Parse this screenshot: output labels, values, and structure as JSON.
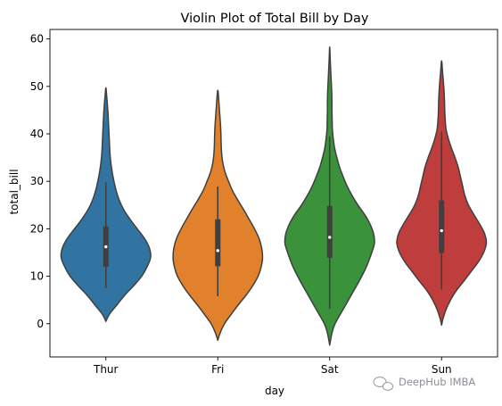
{
  "chart_data": {
    "type": "violin",
    "title": "Violin Plot of Total Bill by Day",
    "xlabel": "day",
    "ylabel": "total_bill",
    "ylim": [
      -7,
      62
    ],
    "yticks": [
      0,
      10,
      20,
      30,
      40,
      50,
      60
    ],
    "grid": false,
    "legend": "none",
    "categories": [
      "Thur",
      "Fri",
      "Sat",
      "Sun"
    ],
    "series": [
      {
        "category": "Thur",
        "color": "#3274a1",
        "kde_range": [
          0.5,
          49.7
        ],
        "density_profile": [
          [
            0.5,
            0.0
          ],
          [
            2,
            0.08
          ],
          [
            4,
            0.25
          ],
          [
            6,
            0.42
          ],
          [
            8,
            0.62
          ],
          [
            10,
            0.8
          ],
          [
            12,
            0.92
          ],
          [
            14,
            1.0
          ],
          [
            16,
            0.97
          ],
          [
            18,
            0.86
          ],
          [
            20,
            0.7
          ],
          [
            22,
            0.54
          ],
          [
            24,
            0.4
          ],
          [
            26,
            0.3
          ],
          [
            28,
            0.23
          ],
          [
            30,
            0.18
          ],
          [
            32,
            0.14
          ],
          [
            34,
            0.11
          ],
          [
            36,
            0.09
          ],
          [
            38,
            0.08
          ],
          [
            40,
            0.07
          ],
          [
            42,
            0.06
          ],
          [
            44,
            0.05
          ],
          [
            46,
            0.035
          ],
          [
            48,
            0.018
          ],
          [
            49.7,
            0.0
          ]
        ],
        "median": 16.2,
        "q1": 12.0,
        "q3": 20.5,
        "whisker_low": 7.5,
        "whisker_high": 29.8
      },
      {
        "category": "Fri",
        "color": "#e1812c",
        "kde_range": [
          -3.5,
          49.2
        ],
        "density_profile": [
          [
            -3.5,
            0.0
          ],
          [
            -2,
            0.05
          ],
          [
            0,
            0.15
          ],
          [
            2,
            0.3
          ],
          [
            4,
            0.46
          ],
          [
            6,
            0.63
          ],
          [
            8,
            0.78
          ],
          [
            10,
            0.9
          ],
          [
            12,
            0.97
          ],
          [
            14,
            1.0
          ],
          [
            16,
            0.98
          ],
          [
            18,
            0.92
          ],
          [
            20,
            0.82
          ],
          [
            22,
            0.7
          ],
          [
            24,
            0.58
          ],
          [
            26,
            0.45
          ],
          [
            28,
            0.33
          ],
          [
            30,
            0.24
          ],
          [
            32,
            0.16
          ],
          [
            34,
            0.11
          ],
          [
            36,
            0.085
          ],
          [
            38,
            0.075
          ],
          [
            40,
            0.07
          ],
          [
            42,
            0.06
          ],
          [
            44,
            0.045
          ],
          [
            46,
            0.03
          ],
          [
            48,
            0.015
          ],
          [
            49.2,
            0.0
          ]
        ],
        "median": 15.4,
        "q1": 12.1,
        "q3": 22.0,
        "whisker_low": 5.8,
        "whisker_high": 28.9
      },
      {
        "category": "Sat",
        "color": "#3a923a",
        "kde_range": [
          -4.5,
          58.3
        ],
        "density_profile": [
          [
            -4.5,
            0.0
          ],
          [
            -2,
            0.05
          ],
          [
            0,
            0.12
          ],
          [
            3,
            0.3
          ],
          [
            6,
            0.48
          ],
          [
            9,
            0.66
          ],
          [
            12,
            0.82
          ],
          [
            15,
            0.94
          ],
          [
            17,
            1.0
          ],
          [
            19,
            0.98
          ],
          [
            21,
            0.9
          ],
          [
            23,
            0.78
          ],
          [
            25,
            0.63
          ],
          [
            27,
            0.5
          ],
          [
            29,
            0.39
          ],
          [
            31,
            0.3
          ],
          [
            33,
            0.22
          ],
          [
            35,
            0.16
          ],
          [
            37,
            0.11
          ],
          [
            39,
            0.08
          ],
          [
            41,
            0.06
          ],
          [
            43,
            0.055
          ],
          [
            45,
            0.05
          ],
          [
            47,
            0.05
          ],
          [
            49,
            0.045
          ],
          [
            51,
            0.035
          ],
          [
            53,
            0.025
          ],
          [
            55,
            0.015
          ],
          [
            57,
            0.007
          ],
          [
            58.3,
            0.0
          ]
        ],
        "median": 18.2,
        "q1": 13.9,
        "q3": 24.8,
        "whisker_low": 3.1,
        "whisker_high": 39.4
      },
      {
        "category": "Sun",
        "color": "#c03d3e",
        "kde_range": [
          -0.3,
          55.4
        ],
        "density_profile": [
          [
            -0.3,
            0.0
          ],
          [
            1,
            0.03
          ],
          [
            3,
            0.1
          ],
          [
            5,
            0.2
          ],
          [
            7,
            0.33
          ],
          [
            9,
            0.5
          ],
          [
            11,
            0.66
          ],
          [
            13,
            0.82
          ],
          [
            15,
            0.94
          ],
          [
            17,
            1.0
          ],
          [
            19,
            0.96
          ],
          [
            21,
            0.85
          ],
          [
            23,
            0.72
          ],
          [
            25,
            0.6
          ],
          [
            27,
            0.52
          ],
          [
            29,
            0.47
          ],
          [
            31,
            0.42
          ],
          [
            33,
            0.37
          ],
          [
            35,
            0.3
          ],
          [
            37,
            0.22
          ],
          [
            39,
            0.15
          ],
          [
            41,
            0.1
          ],
          [
            43,
            0.08
          ],
          [
            45,
            0.07
          ],
          [
            47,
            0.065
          ],
          [
            49,
            0.055
          ],
          [
            51,
            0.04
          ],
          [
            53,
            0.022
          ],
          [
            55.4,
            0.0
          ]
        ],
        "median": 19.6,
        "q1": 14.9,
        "q3": 26.0,
        "whisker_low": 7.2,
        "whisker_high": 40.5
      }
    ]
  },
  "watermark": {
    "text": "DeepHub IMBA",
    "icon": "wechat-icon"
  },
  "colors": {
    "outline": "#3f3f3f",
    "box": "#3f3f3f",
    "median_dot": "#ffffff"
  }
}
